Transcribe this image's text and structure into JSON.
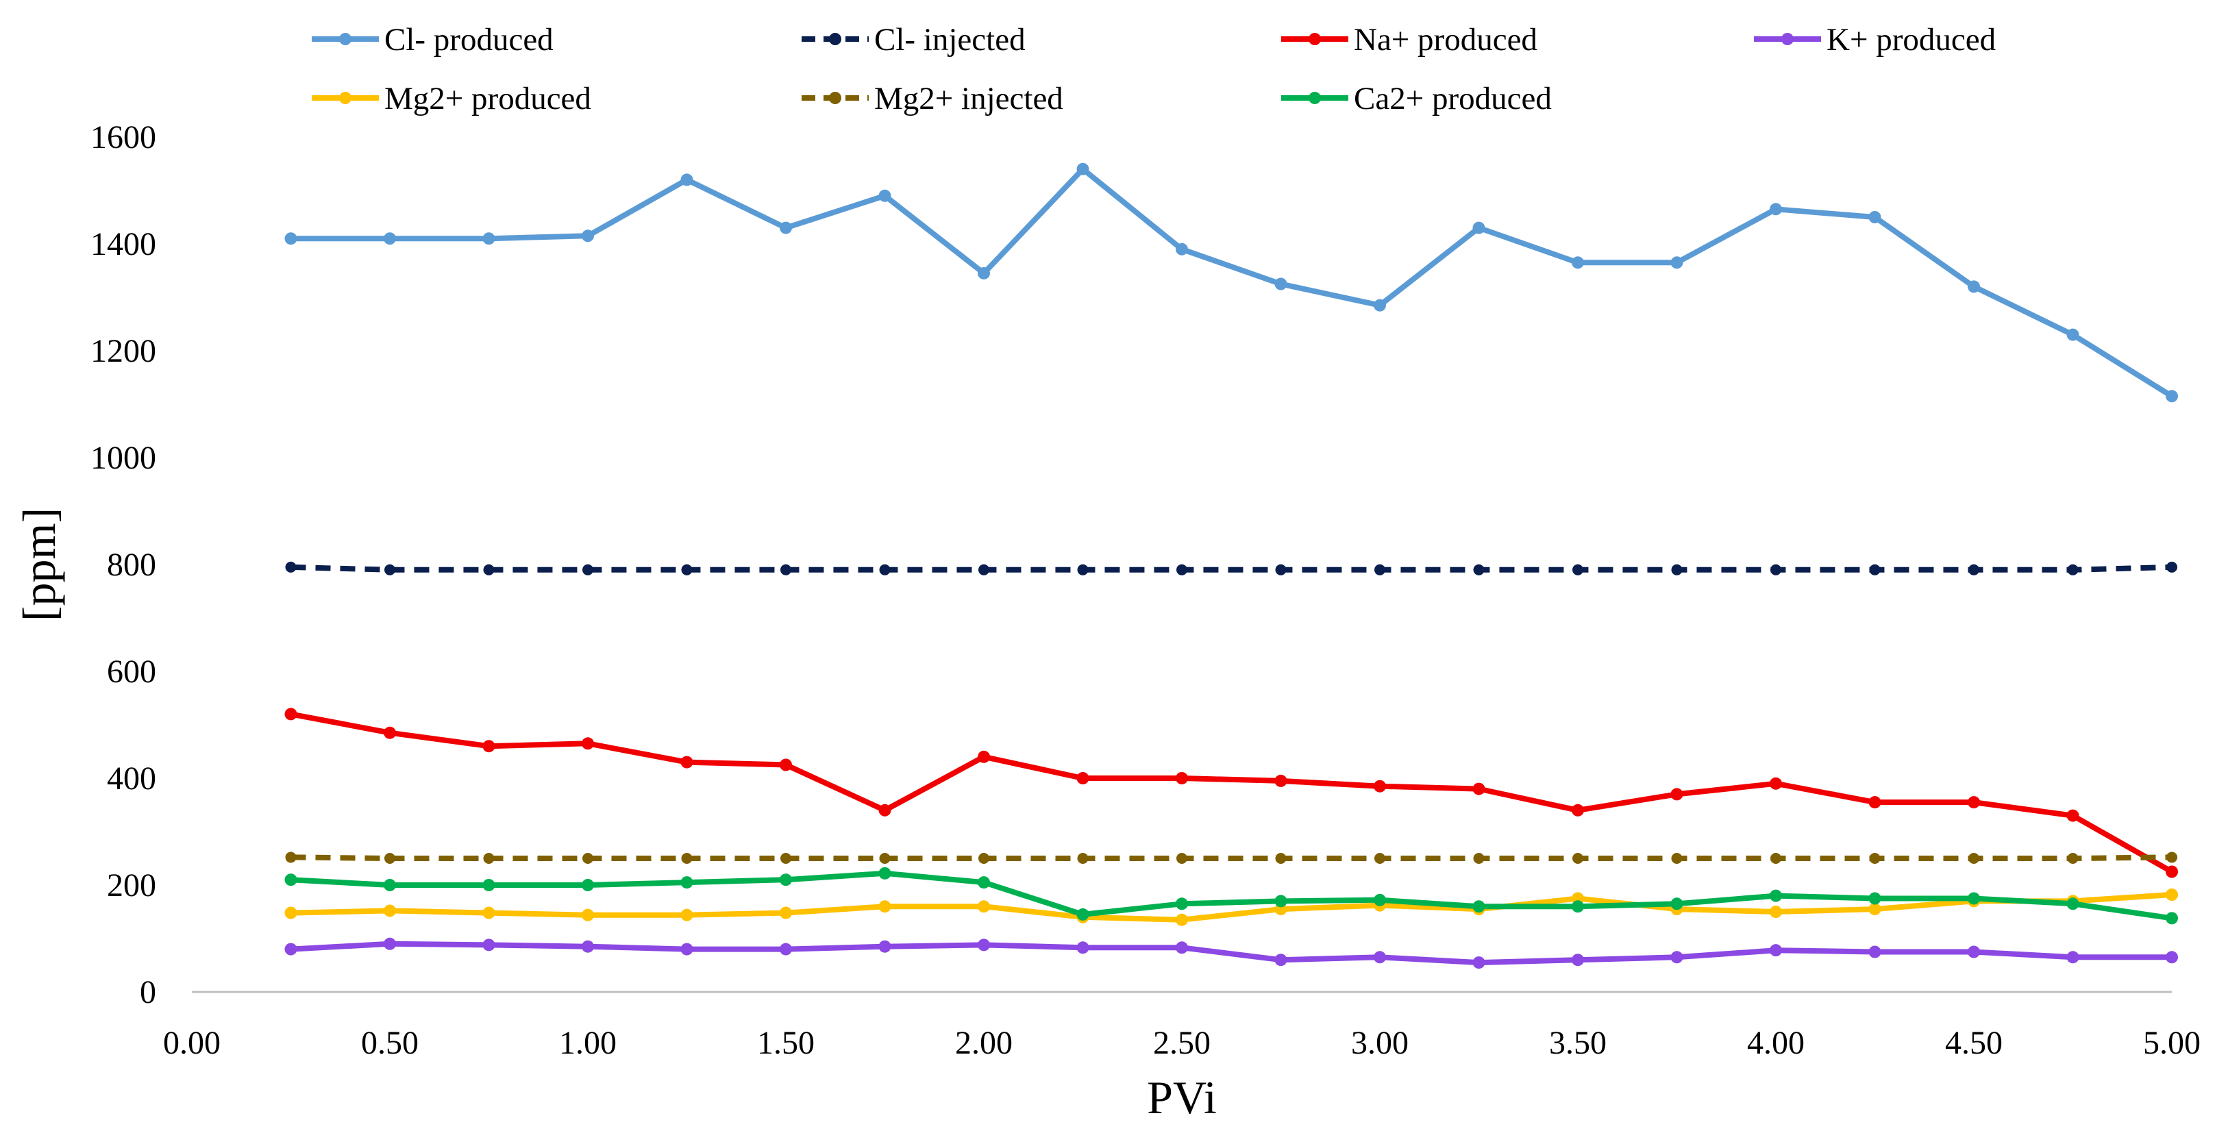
{
  "chart_data": {
    "type": "line",
    "title": "",
    "xlabel": "PVi",
    "ylabel": "[ppm]",
    "xlim": [
      0,
      5
    ],
    "ylim": [
      0,
      1600
    ],
    "x_ticks": [
      "0.00",
      "0.50",
      "1.00",
      "1.50",
      "2.00",
      "2.50",
      "3.00",
      "3.50",
      "4.00",
      "4.50",
      "5.00"
    ],
    "y_ticks": [
      "0",
      "200",
      "400",
      "600",
      "800",
      "1000",
      "1200",
      "1400",
      "1600"
    ],
    "grid": false,
    "legend_position": "top",
    "x": [
      0.25,
      0.5,
      0.75,
      1.0,
      1.25,
      1.5,
      1.75,
      2.0,
      2.25,
      2.5,
      2.75,
      3.0,
      3.25,
      3.5,
      3.75,
      4.0,
      4.25,
      4.5,
      4.75,
      5.0
    ],
    "series": [
      {
        "name": "Cl- produced",
        "color": "#5B9BD5",
        "dashed": false,
        "values": [
          1410,
          1410,
          1410,
          1415,
          1520,
          1430,
          1490,
          1345,
          1540,
          1390,
          1325,
          1285,
          1430,
          1365,
          1365,
          1465,
          1450,
          1320,
          1230,
          1115
        ]
      },
      {
        "name": "Cl- injected",
        "color": "#0B1F4E",
        "dashed": true,
        "values": [
          795,
          790,
          790,
          790,
          790,
          790,
          790,
          790,
          790,
          790,
          790,
          790,
          790,
          790,
          790,
          790,
          790,
          790,
          790,
          795
        ]
      },
      {
        "name": "Na+ produced",
        "color": "#F00000",
        "dashed": false,
        "values": [
          520,
          485,
          460,
          465,
          430,
          425,
          340,
          440,
          400,
          400,
          395,
          385,
          380,
          340,
          370,
          390,
          355,
          355,
          330,
          225
        ]
      },
      {
        "name": "K+ produced",
        "color": "#8B48E3",
        "dashed": false,
        "values": [
          80,
          90,
          88,
          85,
          80,
          80,
          85,
          88,
          83,
          83,
          60,
          65,
          55,
          60,
          65,
          78,
          75,
          75,
          65,
          65
        ]
      },
      {
        "name": "Mg2+ produced",
        "color": "#FFC000",
        "dashed": false,
        "values": [
          148,
          152,
          148,
          144,
          144,
          148,
          160,
          160,
          140,
          135,
          155,
          162,
          155,
          175,
          155,
          150,
          155,
          170,
          170,
          182
        ]
      },
      {
        "name": "Mg2+ injected",
        "color": "#7F6000",
        "dashed": true,
        "values": [
          252,
          250,
          250,
          250,
          250,
          250,
          250,
          250,
          250,
          250,
          250,
          250,
          250,
          250,
          250,
          250,
          250,
          250,
          250,
          252
        ]
      },
      {
        "name": "Ca2+ produced",
        "color": "#00B050",
        "dashed": false,
        "values": [
          210,
          200,
          200,
          200,
          205,
          210,
          222,
          205,
          145,
          165,
          170,
          172,
          160,
          160,
          165,
          180,
          175,
          175,
          165,
          138
        ]
      }
    ]
  }
}
